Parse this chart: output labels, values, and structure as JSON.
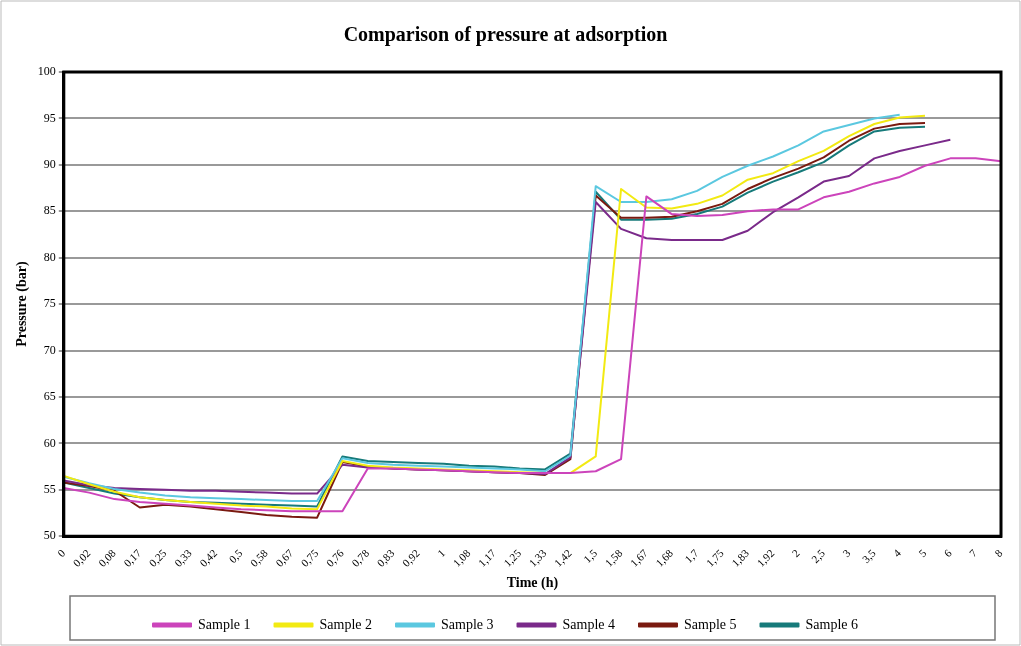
{
  "chart_data": {
    "type": "line",
    "title": "Comparison of pressure at adsorption",
    "xlabel": "Time (h)",
    "ylabel": "Pressure (bar)",
    "categories": [
      "0",
      "0,02",
      "0,08",
      "0,17",
      "0,25",
      "0,33",
      "0,42",
      "0,5",
      "0,58",
      "0,67",
      "0,75",
      "0,76",
      "0,78",
      "0,83",
      "0,92",
      "1",
      "1,08",
      "1,17",
      "1,25",
      "1,33",
      "1,42",
      "1,5",
      "1,58",
      "1,67",
      "1,68",
      "1,7",
      "1,75",
      "1,83",
      "1,92",
      "2",
      "2,5",
      "3",
      "3,5",
      "4",
      "5",
      "6",
      "7",
      "8"
    ],
    "series": [
      {
        "name": "Sample 1",
        "color": "#cc44bb",
        "values": [
          55.2,
          54.7,
          54.0,
          53.7,
          53.5,
          53.3,
          53.1,
          52.9,
          52.8,
          52.7,
          52.7,
          52.7,
          57.3,
          57.3,
          57.2,
          57.1,
          57.0,
          56.9,
          56.8,
          56.8,
          56.8,
          57.0,
          58.3,
          86.6,
          84.7,
          84.5,
          84.6,
          85.0,
          85.2,
          85.2,
          86.5,
          87.1,
          88.0,
          88.7,
          89.9,
          90.7,
          90.7,
          90.4
        ]
      },
      {
        "name": "Sample 2",
        "color": "#f2ea12",
        "values": [
          56.5,
          55.6,
          54.8,
          54.2,
          53.9,
          53.7,
          53.5,
          53.3,
          53.2,
          53.0,
          52.9,
          58.1,
          57.6,
          57.4,
          57.3,
          57.2,
          57.1,
          57.0,
          56.9,
          56.8,
          56.8,
          58.6,
          87.4,
          85.4,
          85.3,
          85.8,
          86.7,
          88.4,
          89.1,
          90.4,
          91.5,
          93.1,
          94.4,
          95.1,
          95.3,
          null,
          null,
          null
        ]
      },
      {
        "name": "Sample 3",
        "color": "#5bc8e0",
        "values": [
          56.4,
          55.7,
          55.1,
          54.7,
          54.4,
          54.2,
          54.1,
          54.0,
          53.9,
          53.8,
          53.8,
          58.4,
          57.9,
          57.7,
          57.6,
          57.5,
          57.4,
          57.3,
          57.2,
          57.0,
          58.7,
          87.7,
          86.0,
          86.0,
          86.3,
          87.2,
          88.7,
          89.9,
          90.9,
          92.1,
          93.6,
          94.3,
          95.0,
          95.4,
          null,
          null,
          null,
          null
        ]
      },
      {
        "name": "Sample 4",
        "color": "#7a2a8a",
        "values": [
          56.0,
          55.5,
          55.2,
          55.1,
          55.0,
          54.9,
          54.9,
          54.8,
          54.7,
          54.6,
          54.6,
          57.7,
          57.4,
          57.3,
          57.2,
          57.1,
          57.0,
          56.9,
          56.8,
          56.7,
          58.5,
          86.0,
          83.1,
          82.1,
          81.9,
          81.9,
          81.9,
          82.9,
          84.9,
          86.5,
          88.2,
          88.8,
          90.7,
          91.5,
          92.1,
          92.7,
          null,
          null
        ]
      },
      {
        "name": "Sample 5",
        "color": "#7a1a10",
        "values": [
          55.8,
          55.4,
          54.9,
          53.1,
          53.4,
          53.2,
          52.9,
          52.6,
          52.3,
          52.1,
          52.0,
          58.0,
          57.5,
          57.3,
          57.2,
          57.1,
          57.0,
          56.9,
          56.8,
          56.6,
          58.3,
          86.7,
          84.3,
          84.3,
          84.4,
          85.0,
          85.8,
          87.4,
          88.6,
          89.6,
          90.8,
          92.6,
          93.9,
          94.4,
          94.5,
          null,
          null,
          null
        ]
      },
      {
        "name": "Sample 6",
        "color": "#167a7a",
        "values": [
          55.8,
          55.2,
          54.6,
          54.2,
          53.9,
          53.7,
          53.6,
          53.5,
          53.4,
          53.3,
          53.2,
          58.6,
          58.1,
          58.0,
          57.9,
          57.8,
          57.6,
          57.5,
          57.3,
          57.2,
          58.9,
          87.1,
          84.1,
          84.1,
          84.2,
          84.7,
          85.5,
          87.0,
          88.2,
          89.2,
          90.3,
          92.1,
          93.6,
          94.0,
          94.1,
          null,
          null,
          null
        ]
      }
    ],
    "ylim": [
      50,
      100
    ],
    "yticks": [
      50,
      55,
      60,
      65,
      70,
      75,
      80,
      85,
      90,
      95,
      100
    ],
    "grid": "y",
    "legend": "bottom",
    "marker": "none",
    "line_style": "solid"
  }
}
